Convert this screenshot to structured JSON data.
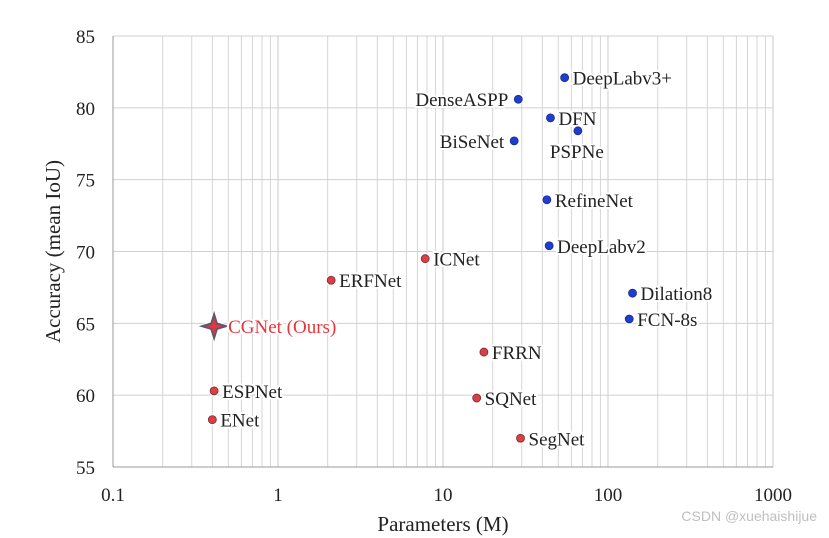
{
  "chart_data": {
    "type": "scatter",
    "title": "",
    "xlabel": "Parameters (M)",
    "ylabel": "Accuracy (mean IoU)",
    "x_scale": "log",
    "xlim": [
      0.1,
      1000
    ],
    "ylim": [
      55,
      85
    ],
    "x_ticks": [
      "0.1",
      "1",
      "10",
      "100",
      "1000"
    ],
    "y_ticks": [
      "55",
      "60",
      "65",
      "70",
      "75",
      "80",
      "85"
    ],
    "grid": true,
    "colors": {
      "red": "#d94045",
      "blue": "#1f3ecf",
      "highlight": "#e8343a",
      "star": "#5a5a6e"
    },
    "points": [
      {
        "name": "CGNet (Ours)",
        "x": 0.41,
        "y": 64.8,
        "color": "highlight",
        "marker": "star",
        "label_pos": "right"
      },
      {
        "name": "ESPNet",
        "x": 0.41,
        "y": 60.3,
        "color": "red",
        "marker": "circle",
        "label_pos": "right"
      },
      {
        "name": "ENet",
        "x": 0.4,
        "y": 58.3,
        "color": "red",
        "marker": "circle",
        "label_pos": "right"
      },
      {
        "name": "ERFNet",
        "x": 2.1,
        "y": 68.0,
        "color": "red",
        "marker": "circle",
        "label_pos": "right"
      },
      {
        "name": "ICNet",
        "x": 7.8,
        "y": 69.5,
        "color": "red",
        "marker": "circle",
        "label_pos": "right"
      },
      {
        "name": "FRRN",
        "x": 17.7,
        "y": 63.0,
        "color": "red",
        "marker": "circle",
        "label_pos": "right"
      },
      {
        "name": "SQNet",
        "x": 16.0,
        "y": 59.8,
        "color": "red",
        "marker": "circle",
        "label_pos": "right"
      },
      {
        "name": "SegNet",
        "x": 29.5,
        "y": 57.0,
        "color": "red",
        "marker": "circle",
        "label_pos": "right"
      },
      {
        "name": "DenseASPP",
        "x": 28.6,
        "y": 80.6,
        "color": "blue",
        "marker": "circle",
        "label_pos": "left"
      },
      {
        "name": "BiSeNet",
        "x": 27.0,
        "y": 77.7,
        "color": "blue",
        "marker": "circle",
        "label_pos": "left"
      },
      {
        "name": "DeepLabv3+",
        "x": 54.6,
        "y": 82.1,
        "color": "blue",
        "marker": "circle",
        "label_pos": "right"
      },
      {
        "name": "DFN",
        "x": 44.8,
        "y": 79.3,
        "color": "blue",
        "marker": "circle",
        "label_pos": "right"
      },
      {
        "name": "PSPNe",
        "x": 65.7,
        "y": 78.4,
        "color": "blue",
        "marker": "circle",
        "label_pos": "below"
      },
      {
        "name": "RefineNet",
        "x": 42.6,
        "y": 73.6,
        "color": "blue",
        "marker": "circle",
        "label_pos": "right"
      },
      {
        "name": "DeepLabv2",
        "x": 44.0,
        "y": 70.4,
        "color": "blue",
        "marker": "circle",
        "label_pos": "right"
      },
      {
        "name": "Dilation8",
        "x": 140.8,
        "y": 67.1,
        "color": "blue",
        "marker": "circle",
        "label_pos": "right"
      },
      {
        "name": "FCN-8s",
        "x": 134.5,
        "y": 65.3,
        "color": "blue",
        "marker": "circle",
        "label_pos": "right"
      }
    ]
  },
  "watermark": "CSDN @xuehaishijue"
}
